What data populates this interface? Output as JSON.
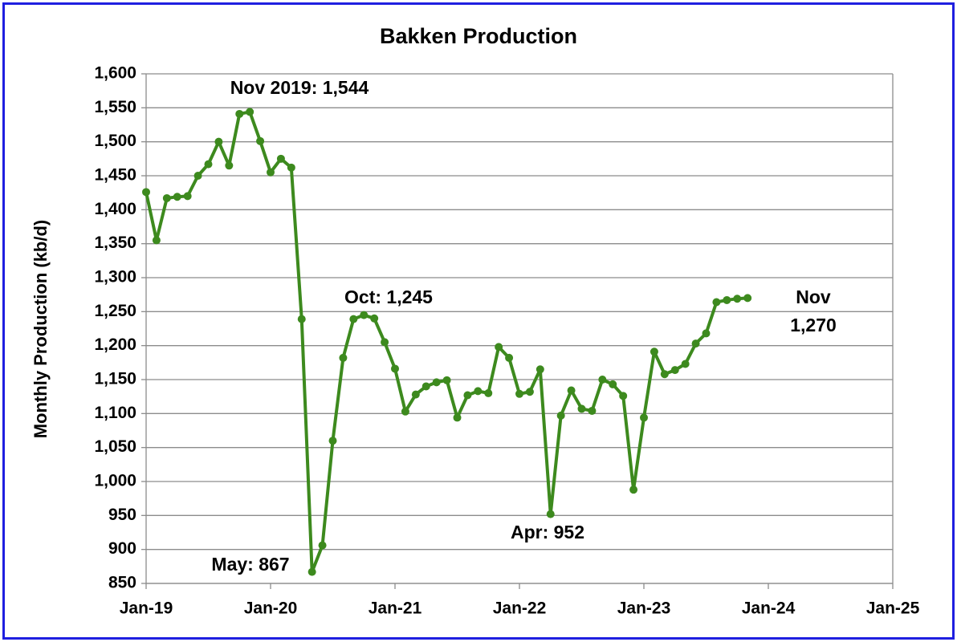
{
  "chart_data": {
    "type": "line",
    "title": "Bakken Production",
    "y_label": "Monthly Production (kb/d)",
    "x": [
      "2019-01",
      "2019-02",
      "2019-03",
      "2019-04",
      "2019-05",
      "2019-06",
      "2019-07",
      "2019-08",
      "2019-09",
      "2019-10",
      "2019-11",
      "2019-12",
      "2020-01",
      "2020-02",
      "2020-03",
      "2020-04",
      "2020-05",
      "2020-06",
      "2020-07",
      "2020-08",
      "2020-09",
      "2020-10",
      "2020-11",
      "2020-12",
      "2021-01",
      "2021-02",
      "2021-03",
      "2021-04",
      "2021-05",
      "2021-06",
      "2021-07",
      "2021-08",
      "2021-09",
      "2021-10",
      "2021-11",
      "2021-12",
      "2022-01",
      "2022-02",
      "2022-03",
      "2022-04",
      "2022-05",
      "2022-06",
      "2022-07",
      "2022-08",
      "2022-09",
      "2022-10",
      "2022-11",
      "2022-12",
      "2023-01",
      "2023-02",
      "2023-03",
      "2023-04",
      "2023-05",
      "2023-06",
      "2023-07",
      "2023-08",
      "2023-09",
      "2023-10",
      "2023-11"
    ],
    "series": [
      {
        "name": "Bakken",
        "color": "#3d8a1e",
        "values": [
          1426,
          1355,
          1417,
          1419,
          1420,
          1450,
          1467,
          1500,
          1465,
          1541,
          1544,
          1501,
          1455,
          1475,
          1462,
          1239,
          867,
          906,
          1060,
          1182,
          1239,
          1245,
          1240,
          1205,
          1166,
          1103,
          1128,
          1140,
          1146,
          1149,
          1094,
          1127,
          1133,
          1130,
          1198,
          1182,
          1129,
          1132,
          1165,
          952,
          1097,
          1134,
          1107,
          1104,
          1150,
          1143,
          1126,
          988,
          1094,
          1191,
          1158,
          1164,
          1173,
          1203,
          1218,
          1264,
          1267,
          1269,
          1270
        ]
      }
    ],
    "xlim": [
      "2019-01",
      "2025-01"
    ],
    "xticks": [
      {
        "value": "2019-01",
        "label": "Jan-19"
      },
      {
        "value": "2020-01",
        "label": "Jan-20"
      },
      {
        "value": "2021-01",
        "label": "Jan-21"
      },
      {
        "value": "2022-01",
        "label": "Jan-22"
      },
      {
        "value": "2023-01",
        "label": "Jan-23"
      },
      {
        "value": "2024-01",
        "label": "Jan-24"
      },
      {
        "value": "2025-01",
        "label": "Jan-25"
      }
    ],
    "ylim": [
      850,
      1600
    ],
    "yticks": [
      {
        "value": 850,
        "label": "850"
      },
      {
        "value": 900,
        "label": "900"
      },
      {
        "value": 950,
        "label": "950"
      },
      {
        "value": 1000,
        "label": "1,000"
      },
      {
        "value": 1050,
        "label": "1,050"
      },
      {
        "value": 1100,
        "label": "1,100"
      },
      {
        "value": 1150,
        "label": "1,150"
      },
      {
        "value": 1200,
        "label": "1,200"
      },
      {
        "value": 1250,
        "label": "1,250"
      },
      {
        "value": 1300,
        "label": "1,300"
      },
      {
        "value": 1350,
        "label": "1,350"
      },
      {
        "value": 1400,
        "label": "1,400"
      },
      {
        "value": 1450,
        "label": "1,450"
      },
      {
        "value": 1500,
        "label": "1,500"
      },
      {
        "value": 1550,
        "label": "1,550"
      },
      {
        "value": 1600,
        "label": "1,600"
      }
    ],
    "grid": true,
    "annotations": [
      "Nov 2019: 1,544",
      "Oct: 1,245",
      "May: 867",
      "Apr: 952",
      "Nov",
      "1,270"
    ]
  }
}
